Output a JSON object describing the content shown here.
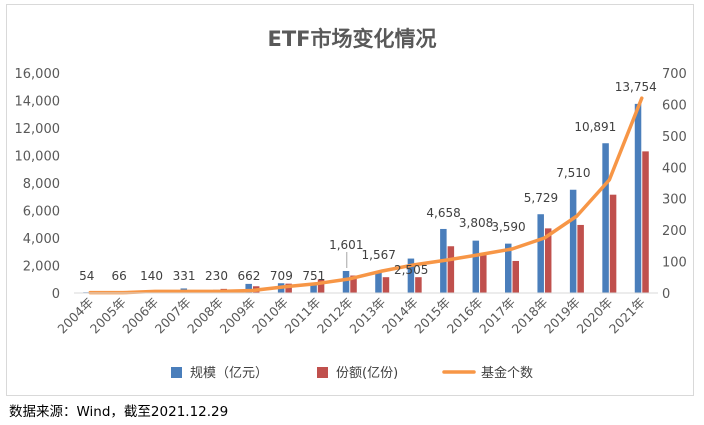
{
  "chart_data": {
    "type": "bar",
    "title": "ETF市场变化情况",
    "categories": [
      "2004年",
      "2005年",
      "2006年",
      "2007年",
      "2008年",
      "2009年",
      "2010年",
      "2011年",
      "2012年",
      "2013年",
      "2014年",
      "2015年",
      "2016年",
      "2017年",
      "2018年",
      "2019年",
      "2020年",
      "2021年"
    ],
    "series": [
      {
        "name": "规模（亿元）",
        "kind": "bar",
        "axis": "left",
        "color": "#4a7ebb",
        "values": [
          54,
          66,
          140,
          331,
          230,
          662,
          709,
          751,
          1601,
          1567,
          2505,
          4658,
          3808,
          3590,
          5729,
          7510,
          10891,
          13754
        ],
        "labels": [
          "54",
          "66",
          "140",
          "331",
          "230",
          "662",
          "709",
          "751",
          "1,601",
          "1,567",
          "2,505",
          "4,658",
          "3,808",
          "3,590",
          "5,729",
          "7,510",
          "10,891",
          "13,754"
        ]
      },
      {
        "name": "份额(亿份)",
        "kind": "bar",
        "axis": "left",
        "color": "#c0504d",
        "values": [
          30,
          40,
          90,
          170,
          300,
          490,
          680,
          1000,
          1270,
          1150,
          1150,
          3400,
          2760,
          2330,
          4700,
          4950,
          7150,
          10300
        ]
      },
      {
        "name": "基金个数",
        "kind": "line",
        "axis": "right",
        "color": "#f79646",
        "values": [
          1,
          1,
          5,
          5,
          5,
          8,
          20,
          30,
          45,
          70,
          90,
          105,
          122,
          140,
          175,
          245,
          360,
          620
        ]
      }
    ],
    "yleft": {
      "min": 0,
      "max": 16000,
      "ticks": [
        0,
        2000,
        4000,
        6000,
        8000,
        10000,
        12000,
        14000,
        16000
      ],
      "tick_labels": [
        "0",
        "2,000",
        "4,000",
        "6,000",
        "8,000",
        "10,000",
        "12,000",
        "14,000",
        "16,000"
      ]
    },
    "yright": {
      "min": 0,
      "max": 700,
      "ticks": [
        0,
        100,
        200,
        300,
        400,
        500,
        600,
        700
      ],
      "tick_labels": [
        "0",
        "100",
        "200",
        "300",
        "400",
        "500",
        "600",
        "700"
      ]
    },
    "grid": false,
    "legend_position": "bottom"
  },
  "footer": {
    "source_note": "数据来源：Wind，截至2021.12.29"
  }
}
